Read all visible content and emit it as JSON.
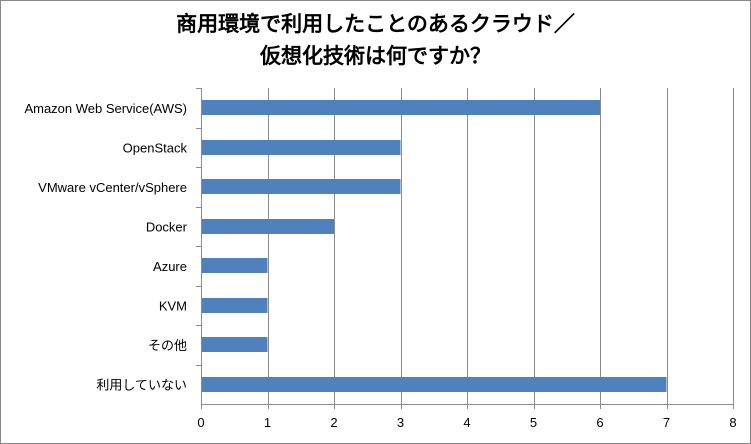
{
  "chart_data": {
    "type": "bar",
    "orientation": "horizontal",
    "title": "商用環境で利用したことのあるクラウド／\n仮想化技術は何ですか？",
    "categories": [
      "Amazon Web Service(AWS)",
      "OpenStack",
      "VMware vCenter/vSphere",
      "Docker",
      "Azure",
      "KVM",
      "その他",
      "利用していない"
    ],
    "values": [
      6,
      3,
      3,
      2,
      1,
      1,
      1,
      7
    ],
    "xlim": [
      0,
      8
    ],
    "xticks": [
      0,
      1,
      2,
      3,
      4,
      5,
      6,
      7,
      8
    ],
    "xlabel": "",
    "ylabel": "",
    "grid": "vertical",
    "bar_color": "#4F81BD",
    "grid_color": "#8C8C8C"
  }
}
